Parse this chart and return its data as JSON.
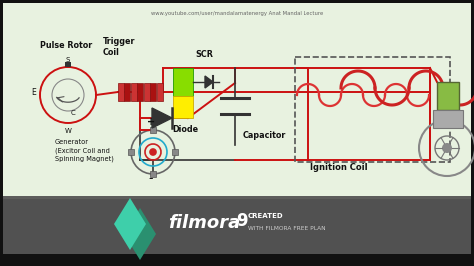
{
  "bg_color": "#e8f2e0",
  "wire_color": "#cc1111",
  "text_color": "#111111",
  "title_text": "www.youtube.com/user/mandalamatenergy Anat Mandal Lecture",
  "filmora_bar_color": "#555555",
  "filmora_diamond_color1": "#3ecfaa",
  "filmora_diamond_color2": "#2a9070",
  "note1": "Pulse Rotor",
  "note2": "Trigger\nCoil",
  "note3": "SCR",
  "note4": "Diode",
  "note5": "Capacitor",
  "note6": "Ignition Coil",
  "note7": "Generator\n(Excitor Coil and\nSpinning Magnet)"
}
